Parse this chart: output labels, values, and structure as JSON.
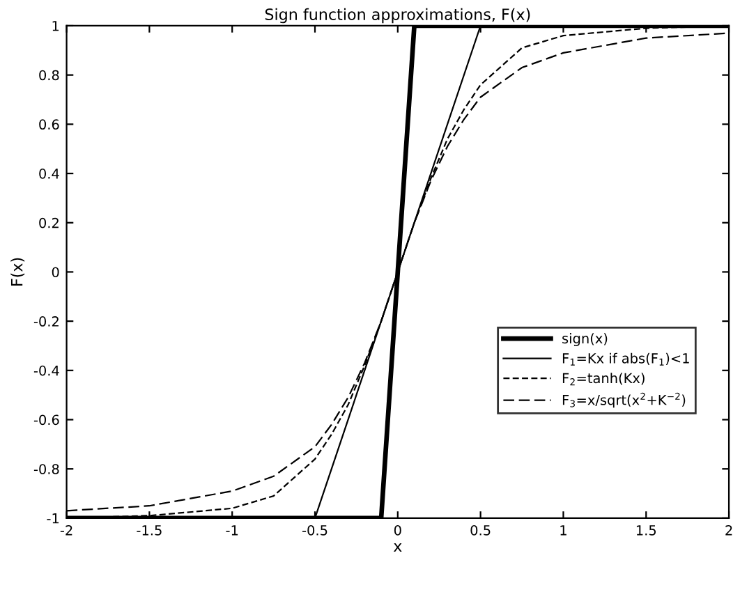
{
  "chart_data": {
    "type": "line",
    "title": "Sign function approximations, F(x)",
    "xlabel": "x",
    "ylabel": "F(x)",
    "xlim": [
      -2,
      2
    ],
    "ylim": [
      -1,
      1
    ],
    "xticks": [
      -2,
      -1.5,
      -1,
      -0.5,
      0,
      0.5,
      1,
      1.5,
      2
    ],
    "yticks": [
      -1,
      -0.8,
      -0.6,
      -0.4,
      -0.2,
      0,
      0.2,
      0.4,
      0.6,
      0.8,
      1
    ],
    "grid": false,
    "legend": "center right",
    "marker": "none",
    "series": [
      {
        "name": "sign(x)",
        "color": "#000000",
        "line_style": "solid",
        "x": [
          -2,
          -0.1,
          0.1,
          2
        ],
        "values": [
          -1,
          -1,
          1,
          1
        ]
      },
      {
        "name": "F$_{1}$=Kx if abs(F$_{1}$)<1",
        "color": "#000000",
        "line_style": "solid",
        "x": [
          -2,
          -0.5,
          0.5,
          2
        ],
        "values": [
          -1,
          -1,
          1,
          1
        ]
      },
      {
        "name": "F$_{2}$=tanh(Kx)",
        "color": "#000000",
        "line_style": "dashed",
        "x": [
          -2,
          -1.5,
          -1,
          -0.75,
          -0.5,
          -0.4,
          -0.3,
          -0.2,
          -0.1,
          0,
          0.1,
          0.2,
          0.3,
          0.4,
          0.5,
          0.75,
          1,
          1.5,
          2
        ],
        "values": [
          -1.0,
          -0.99,
          -0.96,
          -0.91,
          -0.76,
          -0.66,
          -0.54,
          -0.38,
          -0.2,
          0,
          0.2,
          0.38,
          0.54,
          0.66,
          0.76,
          0.91,
          0.96,
          0.99,
          1.0
        ]
      },
      {
        "name": "F$_{3}$=x/sqrt(x$^{2}$+K$^{−2}$)",
        "color": "#000000",
        "line_style": "dashed",
        "x": [
          -2,
          -1.5,
          -1,
          -0.75,
          -0.5,
          -0.4,
          -0.3,
          -0.2,
          -0.1,
          0,
          0.1,
          0.2,
          0.3,
          0.4,
          0.5,
          0.75,
          1,
          1.5,
          2
        ],
        "values": [
          -0.97,
          -0.95,
          -0.89,
          -0.83,
          -0.71,
          -0.62,
          -0.51,
          -0.37,
          -0.2,
          0,
          0.2,
          0.37,
          0.51,
          0.62,
          0.71,
          0.83,
          0.89,
          0.95,
          0.97
        ]
      }
    ]
  }
}
